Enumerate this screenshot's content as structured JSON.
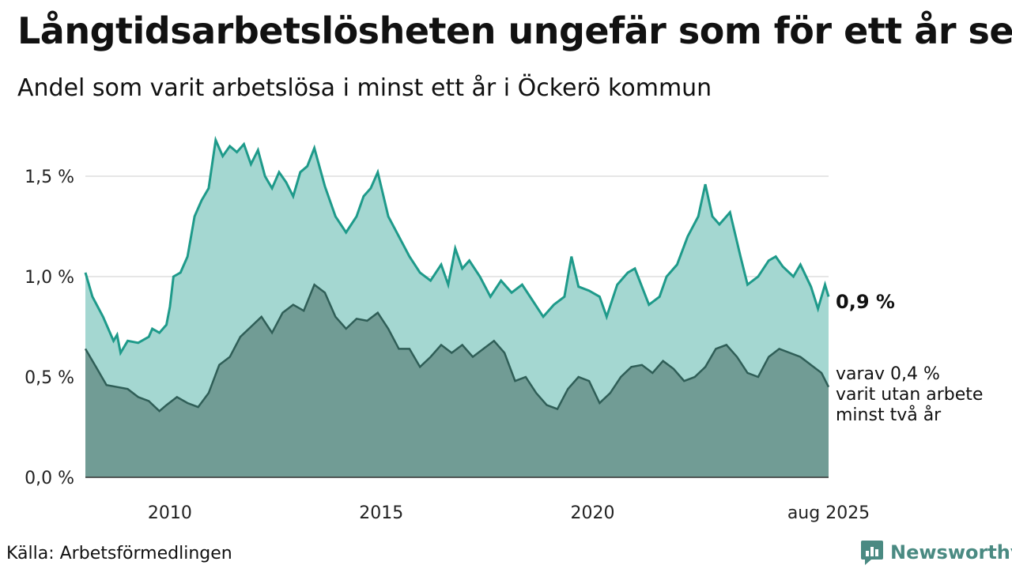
{
  "title": "Långtidsarbetslösheten ungefär som för ett år sen",
  "subtitle": "Andel som varit arbetslösa i minst ett år i Öckerö kommun",
  "source": "Källa: Arbetsförmedlingen",
  "brand": {
    "name": "Newsworthy",
    "icon": "newsworthy-logo-icon",
    "color": "#4a8a82"
  },
  "colors": {
    "total_line": "#1e9a8a",
    "total_fill": "#a4d7d1",
    "long_line": "#2f5e57",
    "long_fill": "#719c95",
    "grid": "#dddddd"
  },
  "labels": {
    "total": "0,9 %",
    "long_lines": [
      "varav 0,4 %",
      "varit utan arbete",
      "minst två år"
    ]
  },
  "chart_data": {
    "type": "area",
    "x_range": [
      "2008-01",
      "2025-08"
    ],
    "x_ticks": [
      {
        "x": "2010-01",
        "label": "2010"
      },
      {
        "x": "2015-01",
        "label": "2015"
      },
      {
        "x": "2020-01",
        "label": "2020"
      },
      {
        "x": "2025-08",
        "label": "aug 2025"
      }
    ],
    "y_ticks": [
      {
        "value": 0.0,
        "label": "0,0 %"
      },
      {
        "value": 0.5,
        "label": "0,5 %"
      },
      {
        "value": 1.0,
        "label": "1,0 %"
      },
      {
        "value": 1.5,
        "label": "1,5 %"
      }
    ],
    "ylim": [
      0,
      1.5
    ],
    "grid": true,
    "series": [
      {
        "key": "total",
        "points": [
          [
            "2008-01",
            1.02
          ],
          [
            "2008-03",
            0.9
          ],
          [
            "2008-06",
            0.8
          ],
          [
            "2008-09",
            0.68
          ],
          [
            "2008-10",
            0.71
          ],
          [
            "2008-11",
            0.62
          ],
          [
            "2009-01",
            0.68
          ],
          [
            "2009-04",
            0.67
          ],
          [
            "2009-07",
            0.7
          ],
          [
            "2009-08",
            0.74
          ],
          [
            "2009-10",
            0.72
          ],
          [
            "2009-12",
            0.76
          ],
          [
            "2010-01",
            0.85
          ],
          [
            "2010-02",
            1.0
          ],
          [
            "2010-04",
            1.02
          ],
          [
            "2010-06",
            1.1
          ],
          [
            "2010-08",
            1.3
          ],
          [
            "2010-10",
            1.38
          ],
          [
            "2010-12",
            1.44
          ],
          [
            "2011-02",
            1.68
          ],
          [
            "2011-04",
            1.6
          ],
          [
            "2011-06",
            1.65
          ],
          [
            "2011-08",
            1.62
          ],
          [
            "2011-10",
            1.66
          ],
          [
            "2011-12",
            1.56
          ],
          [
            "2012-02",
            1.63
          ],
          [
            "2012-04",
            1.5
          ],
          [
            "2012-06",
            1.44
          ],
          [
            "2012-08",
            1.52
          ],
          [
            "2012-10",
            1.47
          ],
          [
            "2012-12",
            1.4
          ],
          [
            "2013-02",
            1.52
          ],
          [
            "2013-04",
            1.55
          ],
          [
            "2013-06",
            1.64
          ],
          [
            "2013-09",
            1.45
          ],
          [
            "2013-12",
            1.3
          ],
          [
            "2014-03",
            1.22
          ],
          [
            "2014-06",
            1.3
          ],
          [
            "2014-08",
            1.4
          ],
          [
            "2014-10",
            1.44
          ],
          [
            "2014-12",
            1.52
          ],
          [
            "2015-03",
            1.3
          ],
          [
            "2015-06",
            1.2
          ],
          [
            "2015-09",
            1.1
          ],
          [
            "2015-12",
            1.02
          ],
          [
            "2016-03",
            0.98
          ],
          [
            "2016-06",
            1.06
          ],
          [
            "2016-08",
            0.96
          ],
          [
            "2016-10",
            1.14
          ],
          [
            "2016-12",
            1.04
          ],
          [
            "2017-02",
            1.08
          ],
          [
            "2017-05",
            1.0
          ],
          [
            "2017-08",
            0.9
          ],
          [
            "2017-11",
            0.98
          ],
          [
            "2018-02",
            0.92
          ],
          [
            "2018-05",
            0.96
          ],
          [
            "2018-08",
            0.88
          ],
          [
            "2018-11",
            0.8
          ],
          [
            "2019-02",
            0.86
          ],
          [
            "2019-05",
            0.9
          ],
          [
            "2019-07",
            1.1
          ],
          [
            "2019-09",
            0.95
          ],
          [
            "2019-12",
            0.93
          ],
          [
            "2020-03",
            0.9
          ],
          [
            "2020-05",
            0.8
          ],
          [
            "2020-08",
            0.96
          ],
          [
            "2020-11",
            1.02
          ],
          [
            "2021-01",
            1.04
          ],
          [
            "2021-03",
            0.95
          ],
          [
            "2021-05",
            0.86
          ],
          [
            "2021-08",
            0.9
          ],
          [
            "2021-10",
            1.0
          ],
          [
            "2022-01",
            1.06
          ],
          [
            "2022-04",
            1.2
          ],
          [
            "2022-07",
            1.3
          ],
          [
            "2022-09",
            1.46
          ],
          [
            "2022-11",
            1.3
          ],
          [
            "2023-01",
            1.26
          ],
          [
            "2023-04",
            1.32
          ],
          [
            "2023-07",
            1.1
          ],
          [
            "2023-09",
            0.96
          ],
          [
            "2023-12",
            1.0
          ],
          [
            "2024-03",
            1.08
          ],
          [
            "2024-05",
            1.1
          ],
          [
            "2024-07",
            1.05
          ],
          [
            "2024-10",
            1.0
          ],
          [
            "2024-12",
            1.06
          ],
          [
            "2025-03",
            0.95
          ],
          [
            "2025-05",
            0.84
          ],
          [
            "2025-07",
            0.96
          ],
          [
            "2025-08",
            0.9
          ]
        ]
      },
      {
        "key": "long",
        "points": [
          [
            "2008-01",
            0.64
          ],
          [
            "2008-04",
            0.55
          ],
          [
            "2008-07",
            0.46
          ],
          [
            "2008-10",
            0.45
          ],
          [
            "2009-01",
            0.44
          ],
          [
            "2009-04",
            0.4
          ],
          [
            "2009-07",
            0.38
          ],
          [
            "2009-10",
            0.33
          ],
          [
            "2009-12",
            0.36
          ],
          [
            "2010-03",
            0.4
          ],
          [
            "2010-06",
            0.37
          ],
          [
            "2010-09",
            0.35
          ],
          [
            "2010-12",
            0.42
          ],
          [
            "2011-03",
            0.56
          ],
          [
            "2011-06",
            0.6
          ],
          [
            "2011-09",
            0.7
          ],
          [
            "2011-12",
            0.75
          ],
          [
            "2012-03",
            0.8
          ],
          [
            "2012-06",
            0.72
          ],
          [
            "2012-09",
            0.82
          ],
          [
            "2012-12",
            0.86
          ],
          [
            "2013-03",
            0.83
          ],
          [
            "2013-06",
            0.96
          ],
          [
            "2013-09",
            0.92
          ],
          [
            "2013-12",
            0.8
          ],
          [
            "2014-03",
            0.74
          ],
          [
            "2014-06",
            0.79
          ],
          [
            "2014-09",
            0.78
          ],
          [
            "2014-12",
            0.82
          ],
          [
            "2015-03",
            0.74
          ],
          [
            "2015-06",
            0.64
          ],
          [
            "2015-09",
            0.64
          ],
          [
            "2015-12",
            0.55
          ],
          [
            "2016-03",
            0.6
          ],
          [
            "2016-06",
            0.66
          ],
          [
            "2016-09",
            0.62
          ],
          [
            "2016-12",
            0.66
          ],
          [
            "2017-03",
            0.6
          ],
          [
            "2017-06",
            0.64
          ],
          [
            "2017-09",
            0.68
          ],
          [
            "2017-12",
            0.62
          ],
          [
            "2018-03",
            0.48
          ],
          [
            "2018-06",
            0.5
          ],
          [
            "2018-09",
            0.42
          ],
          [
            "2018-12",
            0.36
          ],
          [
            "2019-03",
            0.34
          ],
          [
            "2019-06",
            0.44
          ],
          [
            "2019-09",
            0.5
          ],
          [
            "2019-12",
            0.48
          ],
          [
            "2020-03",
            0.37
          ],
          [
            "2020-06",
            0.42
          ],
          [
            "2020-09",
            0.5
          ],
          [
            "2020-12",
            0.55
          ],
          [
            "2021-03",
            0.56
          ],
          [
            "2021-06",
            0.52
          ],
          [
            "2021-09",
            0.58
          ],
          [
            "2021-12",
            0.54
          ],
          [
            "2022-03",
            0.48
          ],
          [
            "2022-06",
            0.5
          ],
          [
            "2022-09",
            0.55
          ],
          [
            "2022-12",
            0.64
          ],
          [
            "2023-03",
            0.66
          ],
          [
            "2023-06",
            0.6
          ],
          [
            "2023-09",
            0.52
          ],
          [
            "2023-12",
            0.5
          ],
          [
            "2024-03",
            0.6
          ],
          [
            "2024-06",
            0.64
          ],
          [
            "2024-09",
            0.62
          ],
          [
            "2024-12",
            0.6
          ],
          [
            "2025-03",
            0.56
          ],
          [
            "2025-06",
            0.52
          ],
          [
            "2025-08",
            0.45
          ]
        ]
      }
    ]
  }
}
